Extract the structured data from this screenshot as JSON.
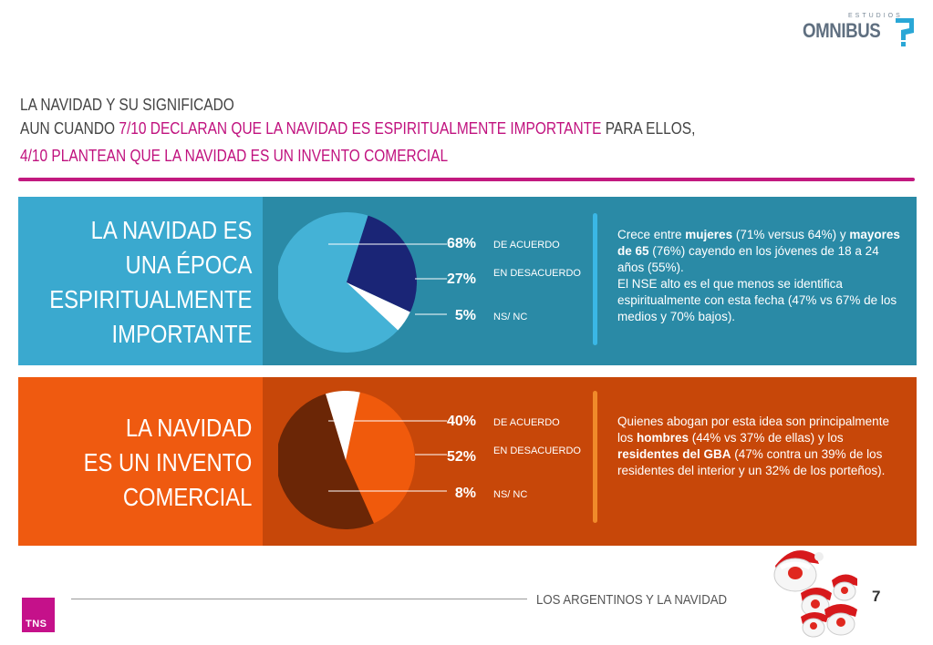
{
  "logo": {
    "small_text": "ESTUDIOS",
    "name": "OMNIBUS",
    "icon": "omnibus-question-icon",
    "color": "#5f6f80",
    "accent": "#2aa7d6"
  },
  "header": {
    "title": "LA NAVIDAD Y SU SIGNIFICADO",
    "line2_a": "AUN CUANDO ",
    "line2_highlight": "7/10 DECLARAN QUE LA NAVIDAD ES ESPIRITUALMENTE IMPORTANTE",
    "line2_b": " PARA ELLOS,",
    "line3_highlight": "4/10 PLANTEAN QUE LA NAVIDAD ES UN INVENTO COMERCIAL",
    "highlight_color": "#c0117e"
  },
  "panels": [
    {
      "title_lines": [
        "LA NAVIDAD ES",
        "UNA ÉPOCA",
        "ESPIRITUALMENTE",
        "IMPORTANTE"
      ],
      "colors": {
        "left": "#3aa9cf",
        "right": "#2a8aa6"
      },
      "items": [
        {
          "pct": "68%",
          "value": 68,
          "label": "DE ACUERDO",
          "color": "#44b2d6"
        },
        {
          "pct": "27%",
          "value": 27,
          "label": "EN DESACUERDO",
          "color": "#1a2576"
        },
        {
          "pct": "5%",
          "value": 5,
          "label": "NS/ NC",
          "color": "#ffffff"
        }
      ],
      "divider_color": "#3ab7e6",
      "description": {
        "p1": "Crece entre ",
        "b1": "mujeres",
        "p2": " (71% versus 64%) y ",
        "b2": "mayores de 65",
        "p3": " (76%) cayendo en los jóvenes de 18 a 24 años (55%).",
        "p4": "El NSE alto es el que menos se identifica espiritualmente con esta fecha (47% vs 67% de los medios y 70% bajos)."
      }
    },
    {
      "title_lines": [
        "LA NAVIDAD",
        "ES UN INVENTO",
        "COMERCIAL"
      ],
      "colors": {
        "left": "#ef5a10",
        "right": "#c74709"
      },
      "items": [
        {
          "pct": "40%",
          "value": 40,
          "label": "DE ACUERDO",
          "color": "#f05a0c"
        },
        {
          "pct": "52%",
          "value": 52,
          "label": "EN DESACUERDO",
          "color": "#6b2606"
        },
        {
          "pct": "8%",
          "value": 8,
          "label": "NS/ NC",
          "color": "#ffffff"
        }
      ],
      "divider_color": "#f08a2a",
      "description": {
        "p1": "Quienes abogan por esta idea son principalmente los ",
        "b1": "hombres",
        "p2": " (44% vs 37% de ellas) y los ",
        "b2": "residentes del GBA",
        "p3": " (47% contra un 39% de los  residentes del interior y un 32% de los porteños).",
        "p4": ""
      }
    }
  ],
  "footer": {
    "text": "LOS ARGENTINOS Y LA NAVIDAD",
    "page": "7",
    "brand": "TNS",
    "brand_color": "#c5118a",
    "decoration": "santa-faces-icon"
  }
}
